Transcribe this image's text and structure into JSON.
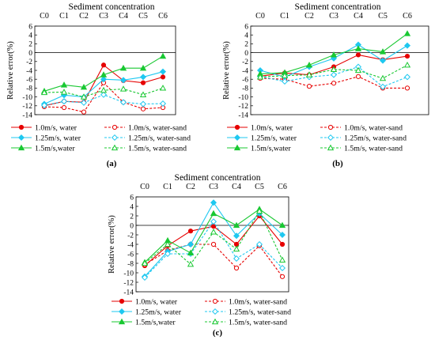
{
  "chart_data": [
    {
      "type": "line",
      "panel_label": "(a)",
      "title": "Sediment concentration",
      "ylabel": "Relative error(%)",
      "categories": [
        "C0",
        "C1",
        "C2",
        "C3",
        "C4",
        "C5",
        "C6"
      ],
      "ylim": [
        -14,
        6
      ],
      "yticks": [
        6,
        4,
        2,
        0,
        -2,
        -4,
        -6,
        -8,
        -10,
        -12,
        -14
      ],
      "grid": false,
      "legend_position": "bottom",
      "series": [
        {
          "name": "1.0m/s, water",
          "color": "#e60000",
          "dashed": false,
          "marker": "circle-filled",
          "values": [
            -12.0,
            -11.0,
            -11.2,
            -2.8,
            -6.3,
            -6.8,
            -5.5
          ]
        },
        {
          "name": "1.0m/s, water-sand",
          "color": "#e60000",
          "dashed": true,
          "marker": "circle-open",
          "values": [
            -12.2,
            -12.4,
            -13.4,
            -6.8,
            -11.2,
            -12.7,
            -12.4
          ]
        },
        {
          "name": "1.25m/s, water",
          "color": "#1ec8f0",
          "dashed": false,
          "marker": "diamond-filled",
          "values": [
            -11.6,
            -9.6,
            -10.0,
            -6.0,
            -6.2,
            -5.5,
            -4.3
          ]
        },
        {
          "name": "1.25m/s, water-sand",
          "color": "#1ec8f0",
          "dashed": true,
          "marker": "diamond-open",
          "values": [
            -11.9,
            -11.0,
            -11.3,
            -9.5,
            -11.2,
            -11.6,
            -11.5
          ]
        },
        {
          "name": "1.5m/s,water",
          "color": "#19c832",
          "dashed": false,
          "marker": "triangle-filled",
          "values": [
            -8.7,
            -7.3,
            -7.8,
            -5.0,
            -3.5,
            -3.5,
            -0.8
          ]
        },
        {
          "name": "1.5m/s, water-sand",
          "color": "#19c832",
          "dashed": true,
          "marker": "triangle-open",
          "values": [
            -9.0,
            -8.9,
            -10.0,
            -8.5,
            -8.2,
            -9.5,
            -8.0
          ]
        }
      ]
    },
    {
      "type": "line",
      "panel_label": "(b)",
      "title": "Sediment concentration",
      "ylabel": "Relative error(%)",
      "categories": [
        "C0",
        "C1",
        "C2",
        "C3",
        "C4",
        "C5",
        "C6"
      ],
      "ylim": [
        -14,
        6
      ],
      "yticks": [
        6,
        4,
        2,
        0,
        -2,
        -4,
        -6,
        -8,
        -10,
        -12,
        -14
      ],
      "grid": false,
      "legend_position": "bottom",
      "series": [
        {
          "name": "1.0m/s, water",
          "color": "#e60000",
          "dashed": false,
          "marker": "circle-filled",
          "values": [
            -5.3,
            -4.6,
            -5.0,
            -3.2,
            -0.5,
            -1.6,
            -0.8
          ]
        },
        {
          "name": "1.0m/s, water-sand",
          "color": "#e60000",
          "dashed": true,
          "marker": "circle-open",
          "values": [
            -5.8,
            -6.0,
            -7.6,
            -6.9,
            -5.4,
            -8.0,
            -8.0
          ]
        },
        {
          "name": "1.25m/s, water",
          "color": "#1ec8f0",
          "dashed": false,
          "marker": "diamond-filled",
          "values": [
            -4.0,
            -5.5,
            -3.2,
            -1.3,
            1.8,
            -1.8,
            1.6
          ]
        },
        {
          "name": "1.25m/s, water-sand",
          "color": "#1ec8f0",
          "dashed": true,
          "marker": "diamond-open",
          "values": [
            -5.4,
            -6.5,
            -5.5,
            -5.0,
            -3.2,
            -7.7,
            -5.5
          ]
        },
        {
          "name": "1.5m/s,water",
          "color": "#19c832",
          "dashed": false,
          "marker": "triangle-filled",
          "values": [
            -4.8,
            -4.5,
            -2.8,
            -0.5,
            0.9,
            0.2,
            4.3
          ]
        },
        {
          "name": "1.5m/s, water-sand",
          "color": "#19c832",
          "dashed": true,
          "marker": "triangle-open",
          "values": [
            -5.5,
            -5.2,
            -5.0,
            -3.8,
            -4.0,
            -5.8,
            -2.8
          ]
        }
      ]
    },
    {
      "type": "line",
      "panel_label": "(c)",
      "title": "Sediment concentration",
      "ylabel": "Relative error(%)",
      "categories": [
        "C0",
        "C1",
        "C2",
        "C3",
        "C4",
        "C5",
        "C6"
      ],
      "ylim": [
        -14,
        6
      ],
      "yticks": [
        6,
        4,
        2,
        0,
        -2,
        -4,
        -6,
        -8,
        -10,
        -12,
        -14
      ],
      "grid": false,
      "legend_position": "bottom",
      "series": [
        {
          "name": "1.0m/s, water",
          "color": "#e60000",
          "dashed": false,
          "marker": "circle-filled",
          "values": [
            -8.5,
            -4.3,
            -1.2,
            -0.2,
            -4.0,
            2.0,
            -4.0
          ]
        },
        {
          "name": "1.0m/s, water-sand",
          "color": "#e60000",
          "dashed": true,
          "marker": "circle-open",
          "values": [
            -8.3,
            -5.3,
            -4.0,
            -4.0,
            -9.0,
            -4.3,
            -10.8
          ]
        },
        {
          "name": "1.25m/s, water",
          "color": "#1ec8f0",
          "dashed": false,
          "marker": "diamond-filled",
          "values": [
            -10.8,
            -5.5,
            -4.0,
            4.8,
            -2.2,
            2.5,
            -2.0
          ]
        },
        {
          "name": "1.25m/s, water-sand",
          "color": "#1ec8f0",
          "dashed": true,
          "marker": "diamond-open",
          "values": [
            -11.0,
            -6.0,
            -6.0,
            0.8,
            -7.0,
            -4.0,
            -9.0
          ]
        },
        {
          "name": "1.5m/s,water",
          "color": "#19c832",
          "dashed": false,
          "marker": "triangle-filled",
          "values": [
            -7.8,
            -3.2,
            -5.8,
            2.5,
            0.0,
            3.4,
            0.0
          ]
        },
        {
          "name": "1.5m/s, water-sand",
          "color": "#19c832",
          "dashed": true,
          "marker": "triangle-open",
          "values": [
            -8.0,
            -4.0,
            -8.2,
            -1.4,
            -5.0,
            3.0,
            -7.3
          ]
        }
      ]
    }
  ]
}
